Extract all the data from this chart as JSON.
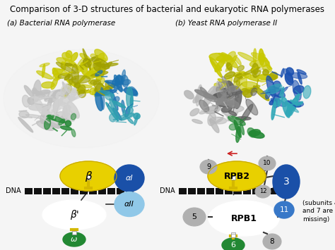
{
  "title": "Comparison of 3-D structures of bacterial and eukaryotic RNA polymerases",
  "title_fontsize": 8.5,
  "bg_color": "#f5f5f5",
  "panel_a_label": "(a) Bacterial RNA polymerase",
  "panel_b_label": "(b) Yeast RNA polymerase II",
  "panel_b_note": "(subunits 4\nand 7 are\nmissing)",
  "dna_label": "DNA",
  "colors": {
    "yellow": "#e8d000",
    "dark_blue": "#1a50a8",
    "light_blue": "#90c8e8",
    "teal": "#208888",
    "green": "#228833",
    "grey": "#b0b0b0",
    "white": "#ffffff",
    "black": "#111111",
    "olive": "#a0a000",
    "silver": "#c8c8c8",
    "dark_grey": "#606060",
    "red": "#cc2222",
    "stalk_yellow": "#d4b800"
  }
}
